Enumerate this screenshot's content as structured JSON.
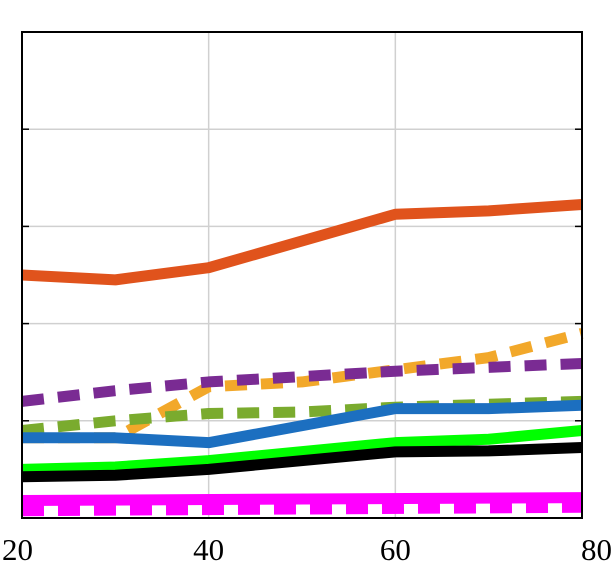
{
  "chart_data": {
    "type": "line",
    "title": "",
    "xlabel": "",
    "ylabel": "",
    "xlim": [
      20,
      80
    ],
    "ylim": [
      0,
      1
    ],
    "grid": true,
    "x_ticks": [
      20,
      40,
      60,
      80
    ],
    "x_tick_labels": [
      "20",
      "40",
      "60",
      "80"
    ],
    "y_ticks": [
      0,
      0.2,
      0.4,
      0.6,
      0.8,
      1.0
    ],
    "series": [
      {
        "color": "#E0531C",
        "style": "solid",
        "x": [
          20,
          30,
          40,
          60,
          70,
          80
        ],
        "y": [
          0.5,
          0.49,
          0.515,
          0.625,
          0.632,
          0.645
        ]
      },
      {
        "color": "#F2A82A",
        "style": "dashed",
        "x": [
          20,
          30,
          40,
          50,
          60,
          70,
          80
        ],
        "y": [
          0.165,
          0.165,
          0.27,
          0.28,
          0.305,
          0.33,
          0.38
        ]
      },
      {
        "color": "#7A2B93",
        "style": "dashed",
        "x": [
          20,
          30,
          40,
          60,
          70,
          80
        ],
        "y": [
          0.24,
          0.262,
          0.28,
          0.302,
          0.31,
          0.318
        ]
      },
      {
        "color": "#7AAB2E",
        "style": "dashed",
        "x": [
          20,
          30,
          40,
          50,
          60,
          70,
          80
        ],
        "y": [
          0.18,
          0.2,
          0.215,
          0.218,
          0.228,
          0.234,
          0.24
        ]
      },
      {
        "color": "#1C6FC0",
        "style": "solid",
        "x": [
          20,
          30,
          40,
          60,
          70,
          80
        ],
        "y": [
          0.165,
          0.165,
          0.155,
          0.225,
          0.225,
          0.232
        ]
      },
      {
        "color": "#00FF00",
        "style": "solid",
        "x": [
          20,
          30,
          40,
          60,
          70,
          80
        ],
        "y": [
          0.1,
          0.105,
          0.118,
          0.155,
          0.162,
          0.18
        ]
      },
      {
        "color": "#000000",
        "style": "solid",
        "x": [
          20,
          30,
          40,
          60,
          70,
          80
        ],
        "y": [
          0.085,
          0.088,
          0.1,
          0.136,
          0.138,
          0.145
        ]
      },
      {
        "color": "#FF00FF",
        "style": "solid",
        "x": [
          20,
          80
        ],
        "y": [
          0.036,
          0.042
        ]
      },
      {
        "color": "#FF00FF",
        "style": "dashed",
        "x": [
          20,
          80
        ],
        "y": [
          0.015,
          0.022
        ]
      }
    ]
  }
}
